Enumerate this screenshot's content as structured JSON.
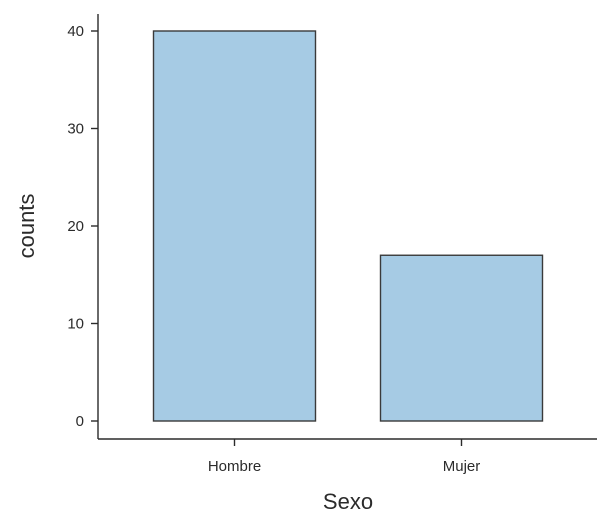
{
  "chart_data": {
    "type": "bar",
    "categories": [
      "Hombre",
      "Mujer"
    ],
    "values": [
      40,
      17
    ],
    "xlabel": "Sexo",
    "ylabel": "counts",
    "yticks": [
      0,
      10,
      20,
      30,
      40
    ],
    "ylim": [
      0,
      40
    ],
    "grid": false,
    "legend": "none",
    "colors": {
      "bar_fill": "#a6cbe4",
      "bar_stroke": "#3a3a3a",
      "axis": "#2b2b2b"
    }
  }
}
